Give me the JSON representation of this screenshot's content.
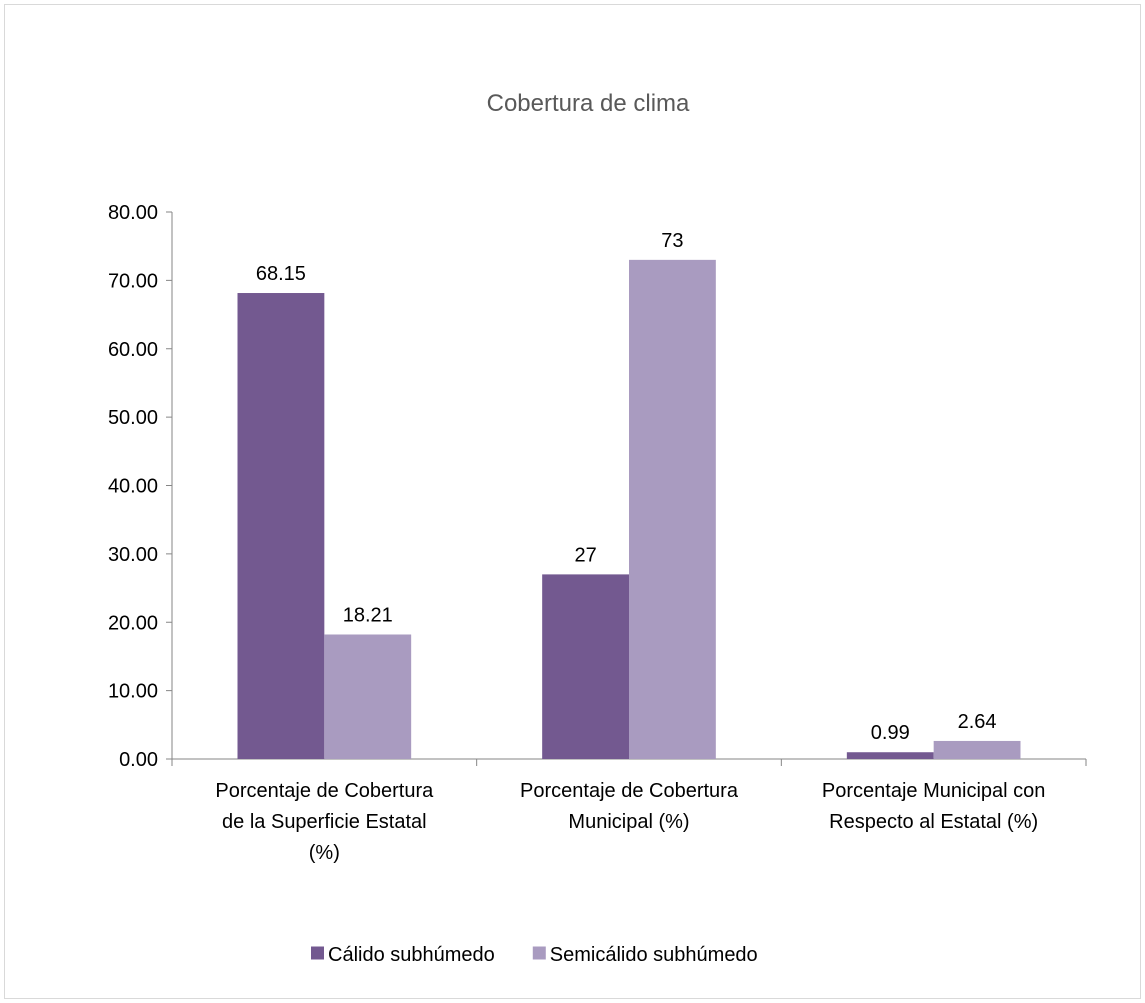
{
  "chart_data": {
    "type": "bar",
    "title": "Cobertura de clima",
    "categories": [
      [
        "Porcentaje de Cobertura",
        "de la Superficie Estatal",
        "(%)"
      ],
      [
        "Porcentaje de Cobertura",
        "Municipal (%)"
      ],
      [
        "Porcentaje Municipal con",
        "Respecto al  Estatal (%)"
      ]
    ],
    "series": [
      {
        "name": "Cálido subhúmedo",
        "color": "#735990",
        "values": [
          68.15,
          27,
          0.99
        ],
        "labels": [
          "68.15",
          "27",
          "0.99"
        ]
      },
      {
        "name": "Semicálido subhúmedo",
        "color": "#a99bc0",
        "values": [
          18.21,
          73,
          2.64
        ],
        "labels": [
          "18.21",
          "73",
          "2.64"
        ]
      }
    ],
    "ylim": [
      0,
      80
    ],
    "yticks": [
      "0.00",
      "10.00",
      "20.00",
      "30.00",
      "40.00",
      "50.00",
      "60.00",
      "70.00",
      "80.00"
    ],
    "grid": false,
    "legend_position": "bottom"
  }
}
